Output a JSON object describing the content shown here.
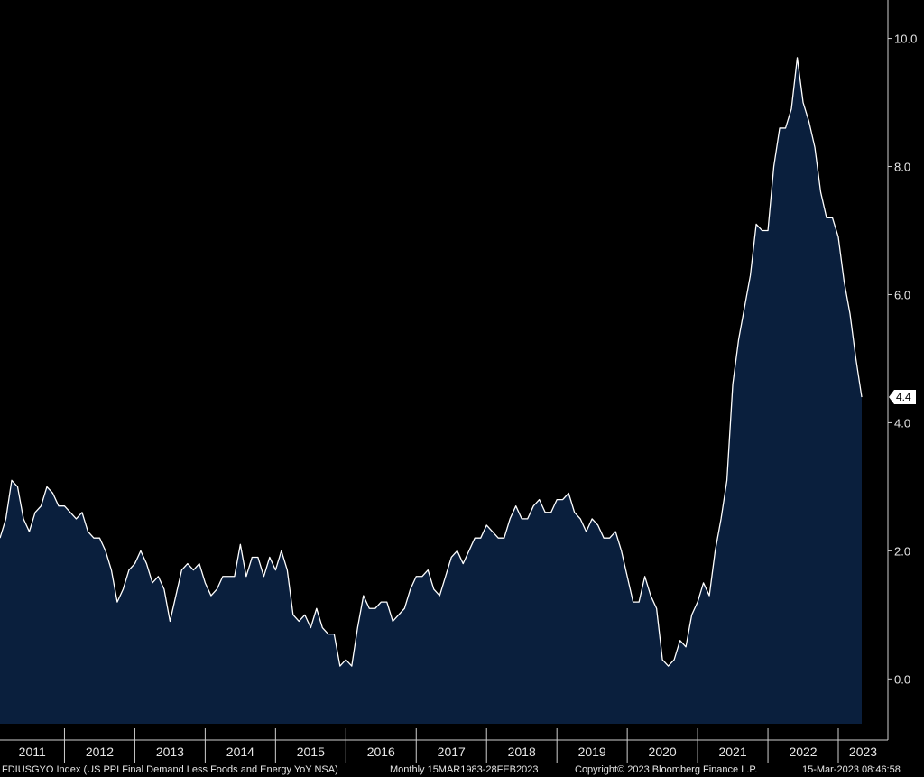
{
  "chart_data": {
    "type": "area",
    "title": "",
    "xlabel": "",
    "ylabel": "",
    "ylim": [
      -0.7,
      10.6
    ],
    "yticks": [
      "0.0",
      "2.0",
      "4.0",
      "6.0",
      "8.0",
      "10.0"
    ],
    "xticks": [
      "2011",
      "2012",
      "2013",
      "2014",
      "2015",
      "2016",
      "2017",
      "2018",
      "2019",
      "2020",
      "2021",
      "2022",
      "2023"
    ],
    "grid": false,
    "legend": "none",
    "colors": {
      "fill": "#0a1f3d",
      "line": "#ffffff",
      "background": "#000000",
      "axis": "#cfcfcf",
      "last_label_bg": "#ffffff"
    },
    "last_value_label": "4.4",
    "series": [
      {
        "values": [
          2.2,
          2.5,
          3.1,
          3.0,
          2.5,
          2.3,
          2.6,
          2.7,
          3.0,
          2.9,
          2.7,
          2.7,
          2.6,
          2.5,
          2.6,
          2.3,
          2.2,
          2.2,
          2.0,
          1.7,
          1.2,
          1.4,
          1.7,
          1.8,
          2.0,
          1.8,
          1.5,
          1.6,
          1.4,
          0.9,
          1.3,
          1.7,
          1.8,
          1.7,
          1.8,
          1.5,
          1.3,
          1.4,
          1.6,
          1.6,
          1.6,
          2.1,
          1.6,
          1.9,
          1.9,
          1.6,
          1.9,
          1.7,
          2.0,
          1.7,
          1.0,
          0.9,
          1.0,
          0.8,
          1.1,
          0.8,
          0.7,
          0.7,
          0.2,
          0.3,
          0.2,
          0.8,
          1.3,
          1.1,
          1.1,
          1.2,
          1.2,
          0.9,
          1.0,
          1.1,
          1.4,
          1.6,
          1.6,
          1.7,
          1.4,
          1.3,
          1.6,
          1.9,
          2.0,
          1.8,
          2.0,
          2.2,
          2.2,
          2.4,
          2.3,
          2.2,
          2.2,
          2.5,
          2.7,
          2.5,
          2.5,
          2.7,
          2.8,
          2.6,
          2.6,
          2.8,
          2.8,
          2.9,
          2.6,
          2.5,
          2.3,
          2.5,
          2.4,
          2.2,
          2.2,
          2.3,
          2.0,
          1.6,
          1.2,
          1.2,
          1.6,
          1.3,
          1.1,
          0.3,
          0.2,
          0.3,
          0.6,
          0.5,
          1.0,
          1.2,
          1.5,
          1.3,
          2.0,
          2.5,
          3.1,
          4.6,
          5.3,
          5.8,
          6.3,
          7.1,
          7.0,
          7.0,
          8.0,
          8.6,
          8.6,
          8.9,
          9.7,
          9.0,
          8.7,
          8.3,
          7.6,
          7.2,
          7.2,
          6.9,
          6.2,
          5.7,
          5.0,
          4.4
        ]
      }
    ]
  },
  "footer": {
    "ticker": "FDIUSGYO Index (US PPI Final Demand Less Foods and Energy YoY NSA)",
    "range": "Monthly 15MAR1983-28FEB2023",
    "copyright": "Copyright© 2023 Bloomberg Finance L.P.",
    "timestamp": "15-Mar-2023 08:46:58"
  }
}
